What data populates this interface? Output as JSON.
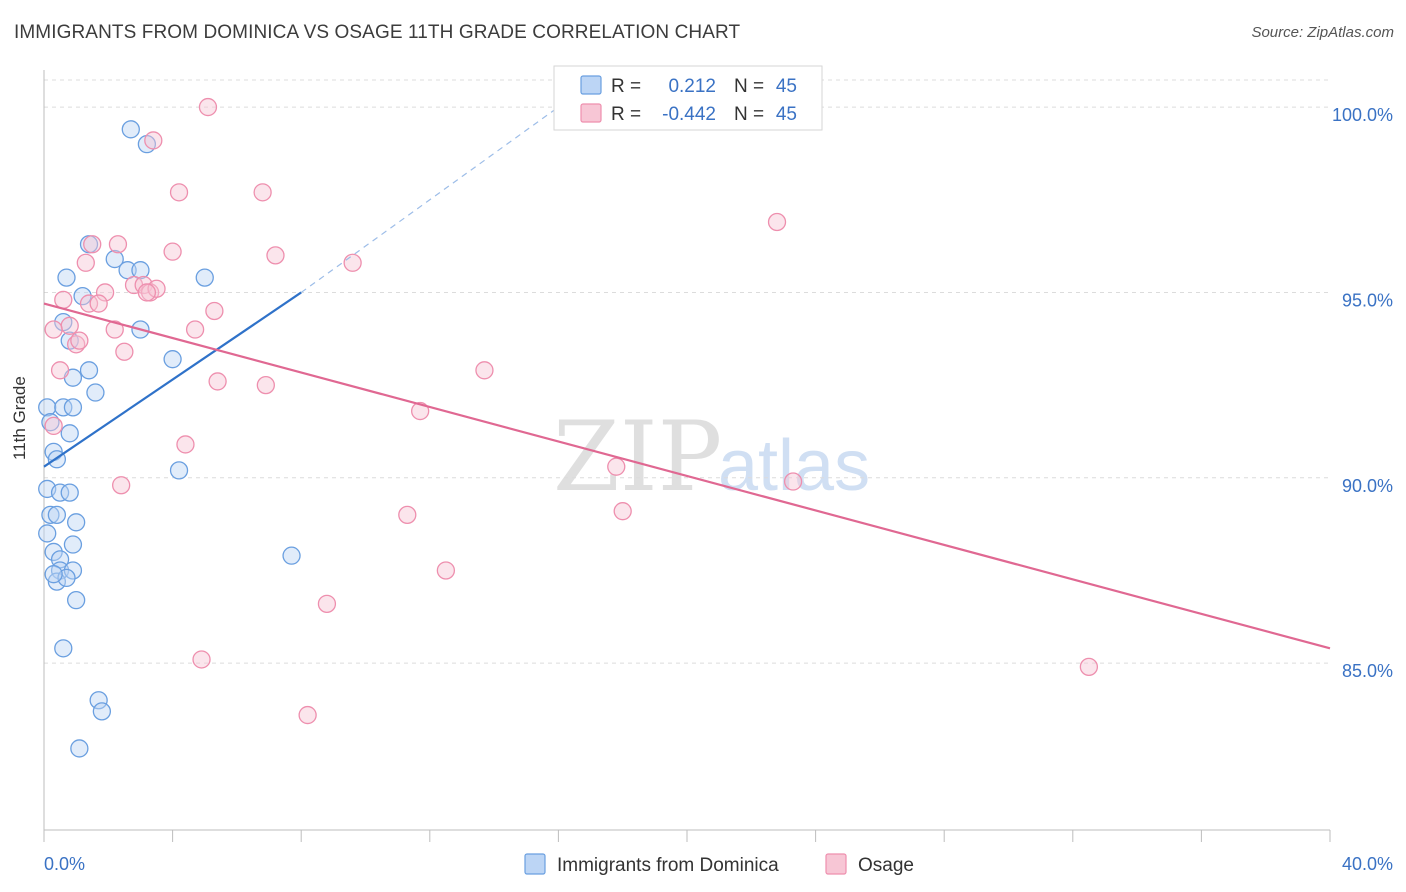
{
  "header": {
    "title": "IMMIGRANTS FROM DOMINICA VS OSAGE 11TH GRADE CORRELATION CHART",
    "source": "Source: ZipAtlas.com"
  },
  "watermark": {
    "zip": "ZIP",
    "atlas": "atlas"
  },
  "colors": {
    "blue": "#6a9fe0",
    "blue_fill": "#bcd5f5",
    "blue_line": "#2f72c9",
    "pink": "#ee8fae",
    "pink_fill": "#f7c6d5",
    "pink_line": "#e06892",
    "axis_text": "#3a72c4",
    "grid": "#dcdcdc"
  },
  "chart_data": {
    "type": "scatter",
    "title": "IMMIGRANTS FROM DOMINICA VS OSAGE 11TH GRADE CORRELATION CHART",
    "ylabel": "11th Grade",
    "xlim": [
      0,
      40
    ],
    "ylim": [
      80.5,
      101
    ],
    "x_tick_labels": [
      "0.0%",
      "40.0%"
    ],
    "y_ticks": [
      85,
      90,
      95,
      100
    ],
    "y_tick_labels": [
      "85.0%",
      "90.0%",
      "95.0%",
      "100.0%"
    ],
    "grid": true,
    "legend": {
      "position": "top-center",
      "entries": [
        {
          "r_label": "R =",
          "r_value": "0.212",
          "n_label": "N =",
          "n_value": "45"
        },
        {
          "r_label": "R =",
          "r_value": "-0.442",
          "n_label": "N =",
          "n_value": "45"
        }
      ]
    },
    "bottom_legend": [
      "Immigrants from Dominica",
      "Osage"
    ],
    "series": [
      {
        "name": "Immigrants from Dominica",
        "trend": {
          "x0": 0.0,
          "y0": 90.3,
          "x1": 8.0,
          "y1": 95.0,
          "dash_to_x": 16.0,
          "dash_to_y": 100.0
        },
        "points": [
          [
            2.7,
            99.4
          ],
          [
            3.2,
            99.0
          ],
          [
            1.4,
            96.3
          ],
          [
            2.2,
            95.9
          ],
          [
            2.6,
            95.6
          ],
          [
            3.0,
            95.6
          ],
          [
            0.7,
            95.4
          ],
          [
            5.0,
            95.4
          ],
          [
            1.2,
            94.9
          ],
          [
            0.6,
            94.2
          ],
          [
            3.0,
            94.0
          ],
          [
            0.8,
            93.7
          ],
          [
            4.0,
            93.2
          ],
          [
            1.4,
            92.9
          ],
          [
            0.9,
            92.7
          ],
          [
            1.6,
            92.3
          ],
          [
            0.1,
            91.9
          ],
          [
            0.6,
            91.9
          ],
          [
            0.9,
            91.9
          ],
          [
            0.8,
            91.2
          ],
          [
            0.3,
            90.7
          ],
          [
            0.4,
            90.5
          ],
          [
            4.2,
            90.2
          ],
          [
            0.1,
            89.7
          ],
          [
            0.5,
            89.6
          ],
          [
            0.8,
            89.6
          ],
          [
            0.2,
            89.0
          ],
          [
            0.4,
            89.0
          ],
          [
            1.0,
            88.8
          ],
          [
            0.1,
            88.5
          ],
          [
            0.9,
            88.2
          ],
          [
            0.3,
            88.0
          ],
          [
            7.7,
            87.9
          ],
          [
            0.5,
            87.8
          ],
          [
            0.5,
            87.5
          ],
          [
            0.9,
            87.5
          ],
          [
            0.4,
            87.2
          ],
          [
            0.7,
            87.3
          ],
          [
            1.0,
            86.7
          ],
          [
            0.6,
            85.4
          ],
          [
            1.7,
            84.0
          ],
          [
            1.8,
            83.7
          ],
          [
            1.1,
            82.7
          ],
          [
            0.2,
            91.5
          ],
          [
            0.3,
            87.4
          ]
        ]
      },
      {
        "name": "Osage",
        "trend": {
          "x0": 0.0,
          "y0": 94.7,
          "x1": 40.0,
          "y1": 85.4
        },
        "points": [
          [
            5.1,
            100.0
          ],
          [
            3.4,
            99.1
          ],
          [
            4.2,
            97.7
          ],
          [
            6.8,
            97.7
          ],
          [
            22.8,
            96.9
          ],
          [
            2.3,
            96.3
          ],
          [
            1.5,
            96.3
          ],
          [
            4.0,
            96.1
          ],
          [
            7.2,
            96.0
          ],
          [
            1.3,
            95.8
          ],
          [
            9.6,
            95.8
          ],
          [
            2.8,
            95.2
          ],
          [
            3.1,
            95.2
          ],
          [
            3.3,
            95.0
          ],
          [
            3.5,
            95.1
          ],
          [
            1.9,
            95.0
          ],
          [
            0.6,
            94.8
          ],
          [
            1.4,
            94.7
          ],
          [
            1.7,
            94.7
          ],
          [
            5.3,
            94.5
          ],
          [
            0.8,
            94.1
          ],
          [
            0.3,
            94.0
          ],
          [
            4.7,
            94.0
          ],
          [
            2.2,
            94.0
          ],
          [
            1.0,
            93.6
          ],
          [
            1.1,
            93.7
          ],
          [
            2.5,
            93.4
          ],
          [
            0.5,
            92.9
          ],
          [
            13.7,
            92.9
          ],
          [
            5.4,
            92.6
          ],
          [
            6.9,
            92.5
          ],
          [
            11.7,
            91.8
          ],
          [
            4.4,
            90.9
          ],
          [
            17.8,
            90.3
          ],
          [
            2.4,
            89.8
          ],
          [
            23.3,
            89.9
          ],
          [
            11.3,
            89.0
          ],
          [
            18.0,
            89.1
          ],
          [
            12.5,
            87.5
          ],
          [
            8.8,
            86.6
          ],
          [
            32.5,
            84.9
          ],
          [
            4.9,
            85.1
          ],
          [
            8.2,
            83.6
          ],
          [
            0.3,
            91.4
          ],
          [
            3.2,
            95.0
          ]
        ]
      }
    ]
  }
}
